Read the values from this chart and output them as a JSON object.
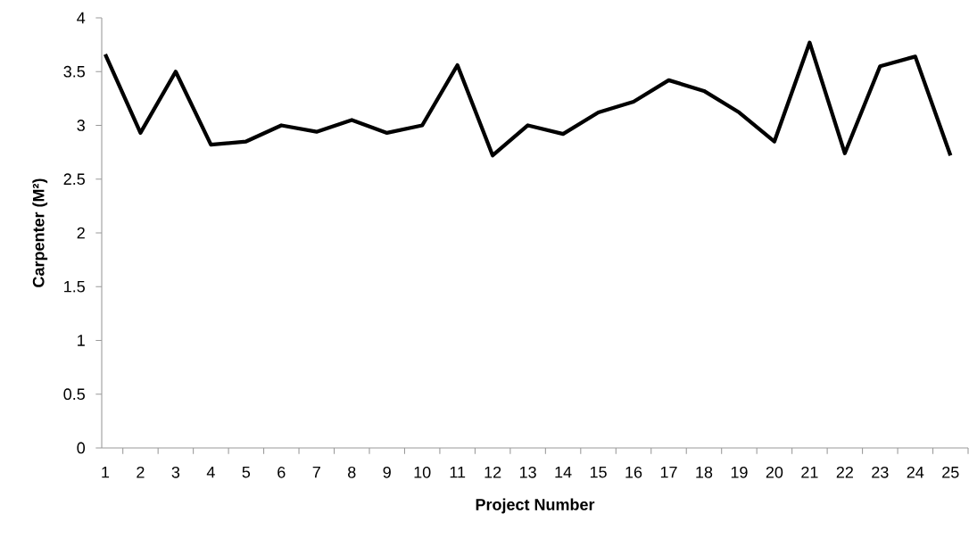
{
  "chart_data": {
    "type": "line",
    "xlabel": "Project Number",
    "ylabel": "Carpenter (M²)",
    "categories": [
      "1",
      "2",
      "3",
      "4",
      "5",
      "6",
      "7",
      "8",
      "9",
      "10",
      "11",
      "12",
      "13",
      "14",
      "15",
      "16",
      "17",
      "18",
      "19",
      "20",
      "21",
      "22",
      "23",
      "24",
      "25"
    ],
    "series": [
      {
        "color": "#000000",
        "values": [
          3.66,
          2.93,
          3.5,
          2.82,
          2.85,
          3.0,
          2.94,
          3.05,
          2.93,
          3.0,
          3.56,
          2.72,
          3.0,
          2.92,
          3.12,
          3.22,
          3.42,
          3.32,
          3.12,
          2.85,
          3.77,
          2.74,
          3.55,
          3.64,
          2.72
        ]
      }
    ],
    "ylim": [
      0,
      4
    ],
    "yticks": [
      0,
      0.5,
      1,
      1.5,
      2,
      2.5,
      3,
      3.5,
      4
    ],
    "grid": false,
    "marker": "none",
    "line_style": "solid"
  }
}
